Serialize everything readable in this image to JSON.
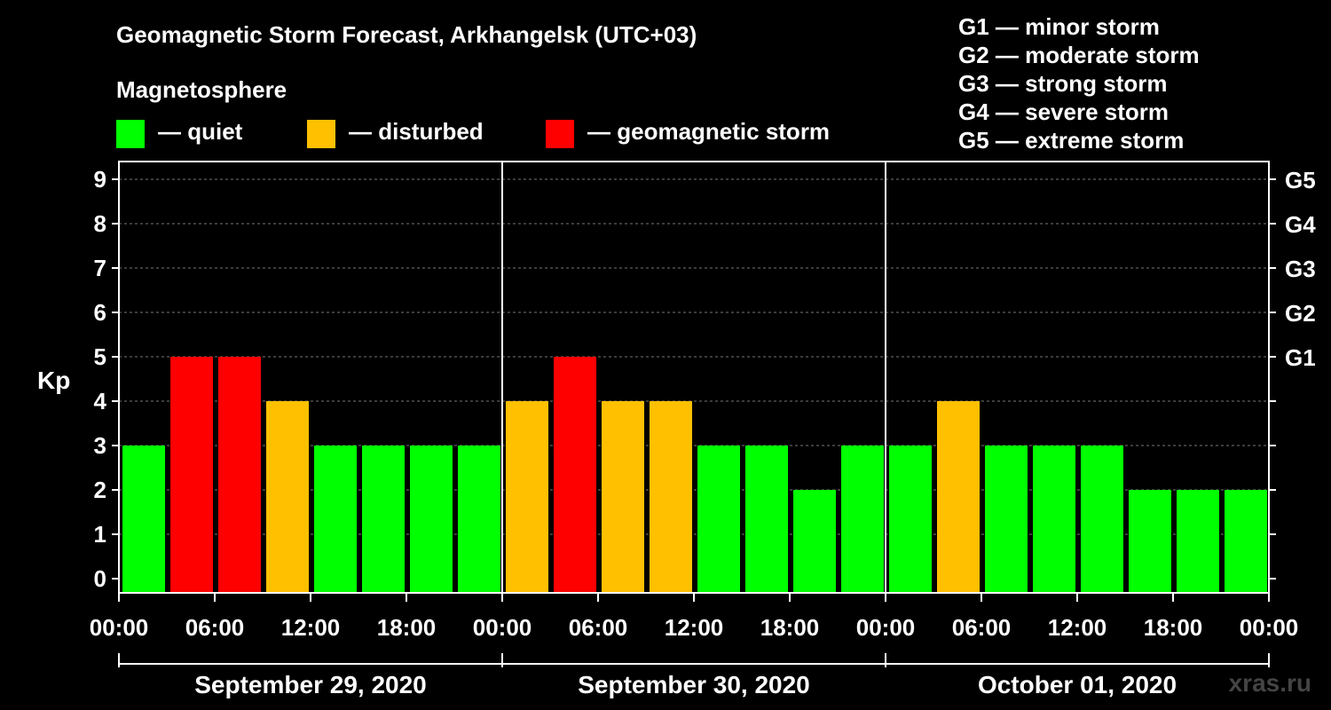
{
  "title": "Geomagnetic Storm Forecast, Arkhangelsk (UTC+03)",
  "magnetosphere": {
    "label": "Magnetosphere",
    "items": [
      {
        "label": "— quiet",
        "color": "#00ff00"
      },
      {
        "label": "— disturbed",
        "color": "#ffc000"
      },
      {
        "label": "— geomagnetic storm",
        "color": "#ff0000"
      }
    ]
  },
  "g_scale_legend": [
    "G1 — minor storm",
    "G2 — moderate storm",
    "G3 — strong storm",
    "G4 — severe storm",
    "G5 — extreme storm"
  ],
  "watermark": "xras.ru",
  "chart_data": {
    "type": "bar",
    "ylabel": "Kp",
    "ylim": [
      0,
      9
    ],
    "yticks": [
      "0",
      "1",
      "2",
      "3",
      "4",
      "5",
      "6",
      "7",
      "8",
      "9"
    ],
    "right_axis_labels": [
      {
        "kp": 5,
        "label": "G1"
      },
      {
        "kp": 6,
        "label": "G2"
      },
      {
        "kp": 7,
        "label": "G3"
      },
      {
        "kp": 8,
        "label": "G4"
      },
      {
        "kp": 9,
        "label": "G5"
      }
    ],
    "xtick_labels": [
      "00:00",
      "06:00",
      "12:00",
      "18:00",
      "00:00",
      "06:00",
      "12:00",
      "18:00",
      "00:00",
      "06:00",
      "12:00",
      "18:00",
      "00:00"
    ],
    "days": [
      "September 29, 2020",
      "September 30, 2020",
      "October 01, 2020"
    ],
    "interval_hours": 3,
    "values": [
      3,
      5,
      5,
      4,
      3,
      3,
      3,
      3,
      4,
      5,
      4,
      4,
      3,
      3,
      2,
      3,
      3,
      4,
      3,
      3,
      3,
      2,
      2,
      2
    ],
    "colors": {
      "quiet": "#00ff00",
      "disturbed": "#ffc000",
      "storm": "#ff0000"
    },
    "thresholds": {
      "disturbed": 4,
      "storm": 5
    },
    "grid": "dashed horizontal"
  }
}
